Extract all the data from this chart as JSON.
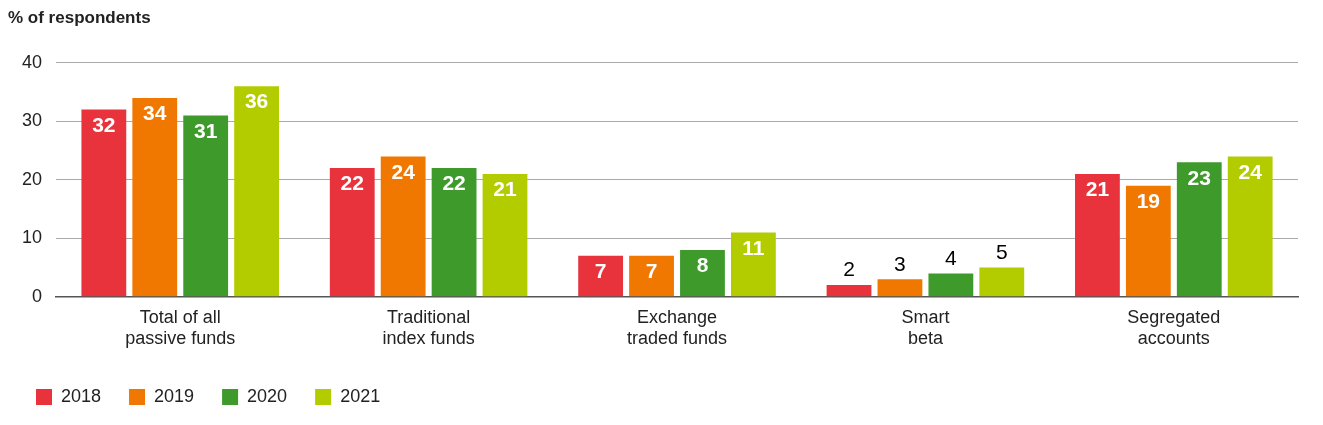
{
  "chart_data": {
    "type": "bar",
    "ylabel": "% of respondents",
    "categories": [
      "Total of all\npassive funds",
      "Traditional\nindex funds",
      "Exchange\ntraded funds",
      "Smart\nbeta",
      "Segregated\naccounts"
    ],
    "series": [
      {
        "name": "2018",
        "color": "#e8323c",
        "values": [
          32,
          22,
          7,
          2,
          21
        ]
      },
      {
        "name": "2019",
        "color": "#f07800",
        "values": [
          34,
          24,
          7,
          3,
          19
        ]
      },
      {
        "name": "2020",
        "color": "#3f9a2c",
        "values": [
          31,
          22,
          8,
          4,
          23
        ]
      },
      {
        "name": "2021",
        "color": "#b3cc00",
        "values": [
          36,
          21,
          11,
          5,
          24
        ]
      }
    ],
    "ylim": [
      0,
      40
    ],
    "yticks": [
      0,
      10,
      20,
      30,
      40
    ],
    "grid": "y",
    "legend": "bottom left",
    "data_labels": true
  }
}
